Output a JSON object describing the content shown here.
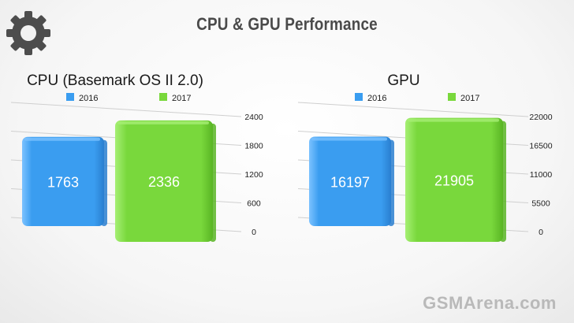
{
  "page": {
    "title": "CPU & GPU Performance",
    "watermark": "GSMArena.com",
    "icon": "gear-icon"
  },
  "colors": {
    "series_2016": "#3a9df0",
    "series_2017": "#79d83c",
    "title": "#4a4a4a",
    "gear": "#4d4d4d"
  },
  "chart_data": [
    {
      "type": "bar",
      "title": "CPU (Basemark OS II 2.0)",
      "categories": [
        "CPU (Basemark OS II 2.0)"
      ],
      "series": [
        {
          "name": "2016",
          "values": [
            1763
          ],
          "label": "1763"
        },
        {
          "name": "2017",
          "values": [
            2336
          ],
          "label": "2336"
        }
      ],
      "ylim": [
        0,
        2400
      ],
      "yticks": [
        0,
        600,
        1200,
        1800,
        2400
      ],
      "ytick_labels": [
        "0",
        "600",
        "1200",
        "1800",
        "2400"
      ],
      "legend": "top",
      "grid": true
    },
    {
      "type": "bar",
      "title": "GPU",
      "categories": [
        "GPU"
      ],
      "series": [
        {
          "name": "2016",
          "values": [
            16197
          ],
          "label": "16197"
        },
        {
          "name": "2017",
          "values": [
            21905
          ],
          "label": "21905"
        }
      ],
      "ylim": [
        0,
        22000
      ],
      "yticks": [
        0,
        5500,
        11000,
        16500,
        22000
      ],
      "ytick_labels": [
        "0",
        "5500",
        "11000",
        "16500",
        "22000"
      ],
      "legend": "top",
      "grid": true
    }
  ]
}
